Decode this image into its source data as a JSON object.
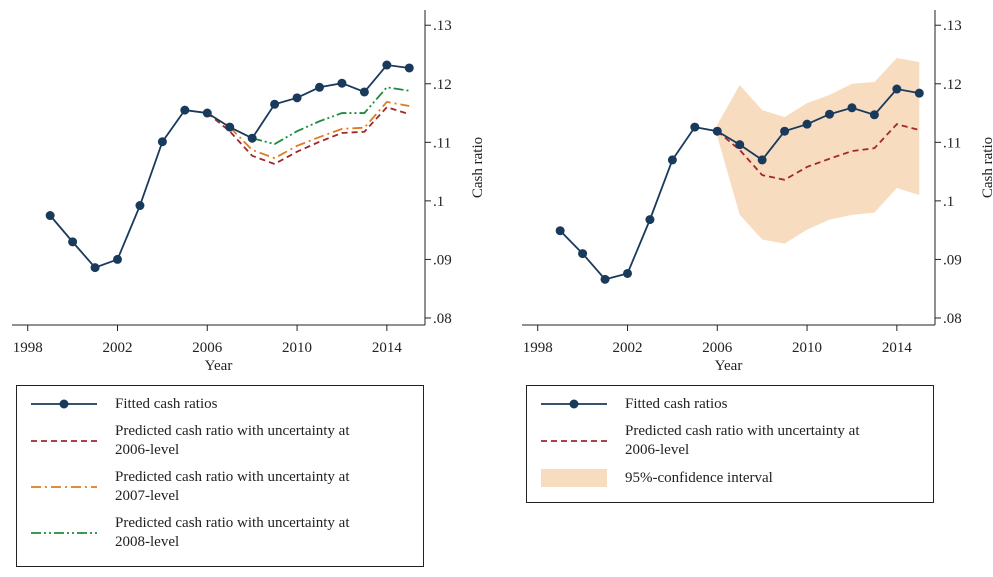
{
  "chart_data": [
    {
      "type": "line",
      "x_label": "Year",
      "y_label": "Cash ratio",
      "x": [
        1999,
        2000,
        2001,
        2002,
        2003,
        2004,
        2005,
        2006,
        2007,
        2008,
        2009,
        2010,
        2011,
        2012,
        2013,
        2014,
        2015
      ],
      "xlim": [
        1997.3,
        2015.7
      ],
      "xticks": [
        1998,
        2002,
        2006,
        2010,
        2014
      ],
      "ylim": [
        0.0788,
        0.1326
      ],
      "yticks": [
        {
          "value": 0.08,
          "label": ".08"
        },
        {
          "value": 0.09,
          "label": ".09"
        },
        {
          "value": 0.1,
          "label": ".1"
        },
        {
          "value": 0.11,
          "label": ".11"
        },
        {
          "value": 0.12,
          "label": ".12"
        },
        {
          "value": 0.13,
          "label": ".13"
        }
      ],
      "y_axis_side": "right",
      "legend": "bottom",
      "series": [
        {
          "name": "Fitted cash ratios",
          "color": "#1a3a5c",
          "dash": "solid",
          "marker": true,
          "values": [
            0.0975,
            0.093,
            0.0886,
            0.09,
            0.0992,
            0.1101,
            0.1155,
            0.115,
            0.1126,
            0.1107,
            0.1165,
            0.1176,
            0.1194,
            0.1201,
            0.1186,
            0.1232,
            0.1227
          ]
        },
        {
          "name": "Predicted cash ratio with uncertainty at 2006-level",
          "color": "#a0282c",
          "dash": "dashed",
          "marker": false,
          "values": [
            null,
            null,
            null,
            null,
            null,
            null,
            null,
            0.115,
            0.1119,
            0.1077,
            0.1063,
            0.1084,
            0.1101,
            0.1116,
            0.1118,
            0.116,
            0.1148
          ]
        },
        {
          "name": "Predicted cash ratio with uncertainty at 2007-level",
          "color": "#e07b1e",
          "dash": "dashdot",
          "marker": false,
          "values": [
            null,
            null,
            null,
            null,
            null,
            null,
            null,
            null,
            0.1126,
            0.1087,
            0.1073,
            0.1094,
            0.1109,
            0.1123,
            0.1125,
            0.1169,
            0.1162
          ]
        },
        {
          "name": "Predicted cash ratio with uncertainty at 2008-level",
          "color": "#1e8c3c",
          "dash": "dashdotdot",
          "marker": false,
          "values": [
            null,
            null,
            null,
            null,
            null,
            null,
            null,
            null,
            null,
            0.1107,
            0.1097,
            0.1119,
            0.1136,
            0.115,
            0.115,
            0.1194,
            0.1188
          ]
        }
      ]
    },
    {
      "type": "line",
      "x_label": "Year",
      "y_label": "Cash ratio",
      "x": [
        1999,
        2000,
        2001,
        2002,
        2003,
        2004,
        2005,
        2006,
        2007,
        2008,
        2009,
        2010,
        2011,
        2012,
        2013,
        2014,
        2015
      ],
      "xlim": [
        1997.3,
        2015.7
      ],
      "xticks": [
        1998,
        2002,
        2006,
        2010,
        2014
      ],
      "ylim": [
        0.0788,
        0.1326
      ],
      "yticks": [
        {
          "value": 0.08,
          "label": ".08"
        },
        {
          "value": 0.09,
          "label": ".09"
        },
        {
          "value": 0.1,
          "label": ".1"
        },
        {
          "value": 0.11,
          "label": ".11"
        },
        {
          "value": 0.12,
          "label": ".12"
        },
        {
          "value": 0.13,
          "label": ".13"
        }
      ],
      "y_axis_side": "right",
      "legend": "bottom",
      "series": [
        {
          "name": "Fitted cash ratios",
          "color": "#1a3a5c",
          "dash": "solid",
          "marker": true,
          "values": [
            0.0949,
            0.091,
            0.0866,
            0.0876,
            0.0968,
            0.107,
            0.1126,
            0.1119,
            0.1096,
            0.107,
            0.1119,
            0.1131,
            0.1148,
            0.1159,
            0.1147,
            0.1191,
            0.1184
          ]
        },
        {
          "name": "Predicted cash ratio with uncertainty at 2006-level",
          "color": "#a0282c",
          "dash": "dashed",
          "marker": false,
          "values": [
            null,
            null,
            null,
            null,
            null,
            null,
            null,
            0.1119,
            0.1087,
            0.1044,
            0.1036,
            0.1058,
            0.1072,
            0.1085,
            0.109,
            0.1131,
            0.1121
          ]
        },
        {
          "name": "95%-confidence interval",
          "color": "#f8dcc0",
          "band": true,
          "low": [
            null,
            null,
            null,
            null,
            null,
            null,
            null,
            0.111,
            0.0976,
            0.0934,
            0.0927,
            0.0951,
            0.0968,
            0.0976,
            0.098,
            0.1022,
            0.101
          ],
          "high": [
            null,
            null,
            null,
            null,
            null,
            null,
            null,
            0.113,
            0.1198,
            0.1155,
            0.1143,
            0.1167,
            0.1181,
            0.12,
            0.1203,
            0.1244,
            0.1237
          ]
        }
      ]
    }
  ]
}
